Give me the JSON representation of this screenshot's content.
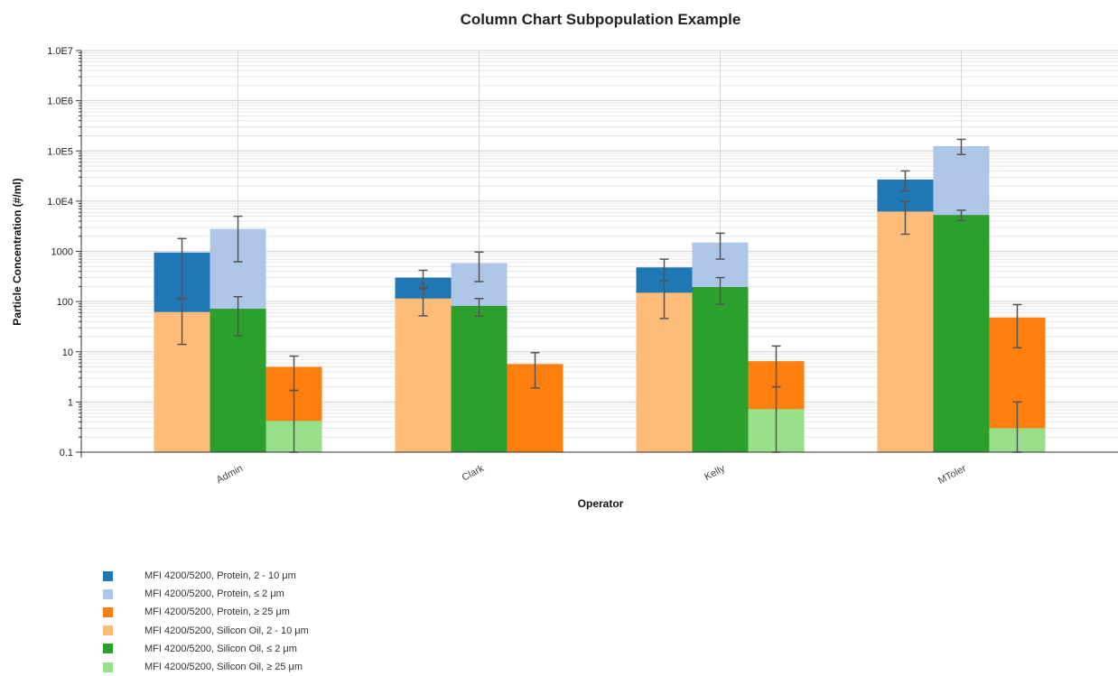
{
  "chart_data": {
    "type": "bar",
    "title": "Column Chart Subpopulation Example",
    "xlabel": "Operator",
    "ylabel": "Particle Concentration (#/ml)",
    "yscale": "log",
    "ylim": [
      0.1,
      10000000
    ],
    "yticks": [
      {
        "value": 0.1,
        "label": "0.1"
      },
      {
        "value": 1,
        "label": "1"
      },
      {
        "value": 10,
        "label": "10"
      },
      {
        "value": 100,
        "label": "100"
      },
      {
        "value": 1000,
        "label": "1000"
      },
      {
        "value": 10000,
        "label": "1.0E4"
      },
      {
        "value": 100000,
        "label": "1.0E5"
      },
      {
        "value": 1000000,
        "label": "1.0E6"
      },
      {
        "value": 10000000,
        "label": "1.0E7"
      }
    ],
    "grid": true,
    "legend_position": "bottom-left",
    "categories": [
      "Admin",
      "Clark",
      "Kelly",
      "MToler"
    ],
    "stack_columns": [
      {
        "lower": "MFI 4200/5200, Silicon Oil, 2 - 10 μm",
        "upper": "MFI 4200/5200, Protein, 2 - 10 μm"
      },
      {
        "lower": "MFI 4200/5200, Silicon Oil, ≤ 2 μm",
        "upper": "MFI 4200/5200, Protein, ≤ 2 μm"
      },
      {
        "lower": "MFI 4200/5200, Silicon Oil, ≥ 25 μm",
        "upper": "MFI 4200/5200, Protein, ≥ 25 μm"
      }
    ],
    "series": [
      {
        "name": "MFI 4200/5200, Protein, 2 - 10 μm",
        "color": "#1f77b4",
        "values": [
          950,
          300,
          480,
          27000
        ],
        "error_low": [
          110,
          180,
          260,
          16000
        ],
        "error_high": [
          1800,
          420,
          700,
          40000
        ]
      },
      {
        "name": "MFI 4200/5200, Protein, ≤ 2 μm",
        "color": "#aec7e8",
        "values": [
          2800,
          580,
          1500,
          125000
        ],
        "error_low": [
          620,
          250,
          700,
          85000
        ],
        "error_high": [
          5000,
          970,
          2300,
          170000
        ]
      },
      {
        "name": "MFI 4200/5200, Protein, ≥ 25 μm",
        "color": "#ff7f0e",
        "values": [
          5,
          5.7,
          6.5,
          48
        ],
        "error_low": [
          1.7,
          1.9,
          2,
          12
        ],
        "error_high": [
          8.2,
          9.6,
          13,
          87
        ]
      },
      {
        "name": "MFI 4200/5200, Silicon Oil, 2 - 10 μm",
        "color": "#ffbb78",
        "values": [
          62,
          115,
          150,
          6200
        ],
        "error_low": [
          14,
          52,
          46,
          2200
        ],
        "error_high": [
          120,
          190,
          260,
          10000
        ]
      },
      {
        "name": "MFI 4200/5200, Silicon Oil, ≤ 2 μm",
        "color": "#2ca02c",
        "values": [
          72,
          82,
          195,
          5300
        ],
        "error_low": [
          21,
          51,
          88,
          4100
        ],
        "error_high": [
          125,
          115,
          300,
          6600
        ]
      },
      {
        "name": "MFI 4200/5200, Silicon Oil, ≥ 25 μm",
        "color": "#98df8a",
        "values": [
          0.42,
          null,
          0.72,
          0.3
        ],
        "error_low": [
          0.1,
          null,
          0.1,
          0.1
        ],
        "error_high": [
          1.7,
          null,
          2,
          1
        ]
      }
    ]
  },
  "legend": {
    "items": [
      {
        "label": "MFI 4200/5200, Protein, 2 - 10 μm",
        "color": "#1f77b4"
      },
      {
        "label": "MFI 4200/5200, Protein, ≤ 2 μm",
        "color": "#aec7e8"
      },
      {
        "label": "MFI 4200/5200, Protein, ≥ 25 μm",
        "color": "#ff7f0e"
      },
      {
        "label": "MFI 4200/5200, Silicon Oil, 2 - 10 μm",
        "color": "#ffbb78"
      },
      {
        "label": "MFI 4200/5200, Silicon Oil, ≤ 2 μm",
        "color": "#2ca02c"
      },
      {
        "label": "MFI 4200/5200, Silicon Oil, ≥ 25 μm",
        "color": "#98df8a"
      }
    ]
  }
}
